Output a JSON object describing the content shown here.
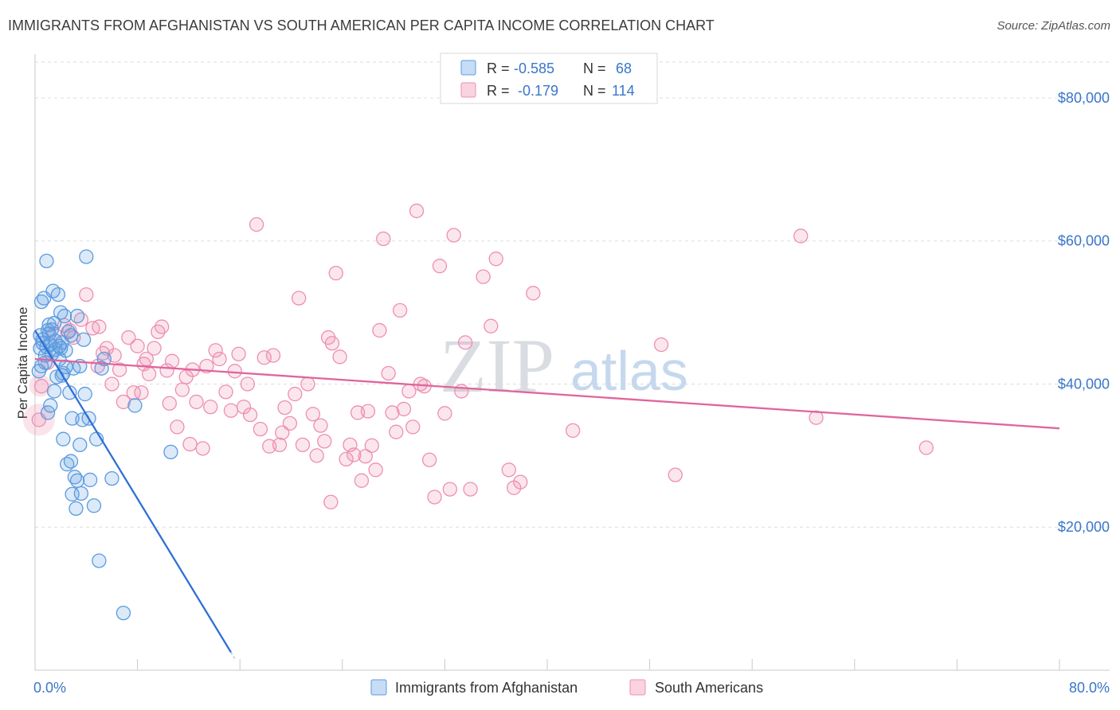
{
  "title": "IMMIGRANTS FROM AFGHANISTAN VS SOUTH AMERICAN PER CAPITA INCOME CORRELATION CHART",
  "source": "Source: ZipAtlas.com",
  "watermark": {
    "zip": "ZIP",
    "atlas": "atlas"
  },
  "colors": {
    "blue": "#5b9be0",
    "blue_line": "#2f6fd6",
    "pink": "#ee8fb0",
    "pink_line": "#e0659a",
    "tick_text": "#3a76c9"
  },
  "chart_data": {
    "type": "scatter",
    "ylabel": "Per Capita Income",
    "xlim": [
      0,
      80
    ],
    "ylim": [
      0,
      85000
    ],
    "x_tick_labels": {
      "left": "0.0%",
      "right": "80.0%"
    },
    "y_ticks": [
      20000,
      40000,
      60000,
      80000
    ],
    "y_tick_labels": [
      "$20,000",
      "$40,000",
      "$60,000",
      "$80,000"
    ],
    "grid": true,
    "legend": {
      "position": "top-center",
      "rows": [
        {
          "r_label": "R =",
          "r_value": "-0.585",
          "n_label": "N =",
          "n_value": "68"
        },
        {
          "r_label": "R =",
          "r_value": "-0.179",
          "n_label": "N =",
          "n_value": "114"
        }
      ]
    },
    "bottom_legend": [
      "Immigrants from Afghanistan",
      "South Americans"
    ],
    "series": [
      {
        "name": "Immigrants from Afghanistan",
        "color": "#5b9be0",
        "trend": {
          "x": [
            0.0,
            15.3
          ],
          "y": [
            47500,
            2500
          ]
        },
        "points": [
          [
            0.4,
            45000
          ],
          [
            0.6,
            46200
          ],
          [
            0.8,
            44000
          ],
          [
            1.0,
            47500
          ],
          [
            0.5,
            42500
          ],
          [
            1.2,
            45500
          ],
          [
            1.5,
            48500
          ],
          [
            0.7,
            52000
          ],
          [
            1.4,
            53000
          ],
          [
            1.8,
            52500
          ],
          [
            2.0,
            50000
          ],
          [
            2.3,
            49500
          ],
          [
            1.1,
            47000
          ],
          [
            0.9,
            45200
          ],
          [
            1.6,
            46000
          ],
          [
            2.1,
            45800
          ],
          [
            2.6,
            47300
          ],
          [
            1.3,
            44200
          ],
          [
            1.9,
            43500
          ],
          [
            2.8,
            46800
          ],
          [
            3.3,
            49500
          ],
          [
            2.4,
            42400
          ],
          [
            3.0,
            42200
          ],
          [
            2.2,
            41500
          ],
          [
            1.7,
            41000
          ],
          [
            0.3,
            41800
          ],
          [
            1.5,
            39000
          ],
          [
            2.7,
            38800
          ],
          [
            3.9,
            38600
          ],
          [
            1.2,
            37000
          ],
          [
            1.0,
            36000
          ],
          [
            2.9,
            35200
          ],
          [
            3.7,
            35000
          ],
          [
            4.2,
            35200
          ],
          [
            4.8,
            32300
          ],
          [
            2.2,
            32300
          ],
          [
            3.5,
            31500
          ],
          [
            2.8,
            29200
          ],
          [
            2.5,
            28800
          ],
          [
            3.1,
            27000
          ],
          [
            3.3,
            26500
          ],
          [
            4.3,
            26600
          ],
          [
            6.0,
            26800
          ],
          [
            2.9,
            24600
          ],
          [
            3.6,
            24700
          ],
          [
            3.2,
            22600
          ],
          [
            4.6,
            23000
          ],
          [
            5.0,
            15300
          ],
          [
            6.9,
            8000
          ],
          [
            0.9,
            57200
          ],
          [
            4.0,
            57800
          ],
          [
            0.4,
            46800
          ],
          [
            1.3,
            47600
          ],
          [
            2.4,
            44700
          ],
          [
            0.6,
            45700
          ],
          [
            5.2,
            42200
          ],
          [
            7.8,
            37000
          ],
          [
            10.6,
            30500
          ],
          [
            3.5,
            42500
          ],
          [
            0.8,
            43000
          ],
          [
            1.6,
            44800
          ],
          [
            2.1,
            41200
          ],
          [
            5.4,
            43500
          ],
          [
            1.9,
            45300
          ],
          [
            3.8,
            46200
          ],
          [
            1.1,
            48300
          ],
          [
            0.5,
            51500
          ],
          [
            2.0,
            45000
          ]
        ]
      },
      {
        "name": "South Americans",
        "color": "#ee8fb0",
        "trend": {
          "x": [
            0.0,
            80.0
          ],
          "y": [
            43500,
            33800
          ]
        },
        "points": [
          [
            0.3,
            35000
          ],
          [
            0.5,
            39700
          ],
          [
            1.0,
            43000
          ],
          [
            1.5,
            47000
          ],
          [
            2.3,
            48200
          ],
          [
            2.7,
            47500
          ],
          [
            3.0,
            46500
          ],
          [
            3.6,
            49000
          ],
          [
            4.0,
            52500
          ],
          [
            4.5,
            47800
          ],
          [
            5.0,
            48000
          ],
          [
            5.3,
            44300
          ],
          [
            5.6,
            45000
          ],
          [
            6.2,
            44000
          ],
          [
            6.0,
            40000
          ],
          [
            6.6,
            42000
          ],
          [
            6.9,
            37500
          ],
          [
            7.3,
            46500
          ],
          [
            7.7,
            38800
          ],
          [
            8.0,
            45300
          ],
          [
            8.3,
            38800
          ],
          [
            8.7,
            43500
          ],
          [
            8.9,
            41400
          ],
          [
            9.3,
            45000
          ],
          [
            9.6,
            47300
          ],
          [
            9.9,
            48000
          ],
          [
            10.3,
            41900
          ],
          [
            10.5,
            37300
          ],
          [
            10.7,
            43200
          ],
          [
            11.1,
            34000
          ],
          [
            11.5,
            39200
          ],
          [
            11.8,
            41000
          ],
          [
            12.1,
            31600
          ],
          [
            12.3,
            42000
          ],
          [
            12.6,
            37500
          ],
          [
            13.1,
            31000
          ],
          [
            13.4,
            42500
          ],
          [
            13.7,
            36800
          ],
          [
            14.1,
            44700
          ],
          [
            14.4,
            43500
          ],
          [
            14.9,
            38900
          ],
          [
            15.3,
            36300
          ],
          [
            15.6,
            41800
          ],
          [
            15.9,
            44200
          ],
          [
            16.3,
            36800
          ],
          [
            16.6,
            40000
          ],
          [
            16.8,
            35700
          ],
          [
            17.3,
            62300
          ],
          [
            17.9,
            43700
          ],
          [
            17.6,
            33700
          ],
          [
            18.3,
            31300
          ],
          [
            18.6,
            44000
          ],
          [
            19.3,
            33200
          ],
          [
            19.1,
            31500
          ],
          [
            19.5,
            36700
          ],
          [
            19.9,
            34500
          ],
          [
            20.3,
            38600
          ],
          [
            20.6,
            52000
          ],
          [
            20.9,
            31500
          ],
          [
            21.3,
            40000
          ],
          [
            21.7,
            35800
          ],
          [
            22.0,
            30000
          ],
          [
            22.3,
            34200
          ],
          [
            22.6,
            32000
          ],
          [
            22.9,
            46500
          ],
          [
            23.2,
            45700
          ],
          [
            23.5,
            55500
          ],
          [
            23.8,
            43800
          ],
          [
            23.1,
            23500
          ],
          [
            24.3,
            29500
          ],
          [
            24.6,
            31500
          ],
          [
            24.9,
            30100
          ],
          [
            25.2,
            36000
          ],
          [
            25.5,
            26500
          ],
          [
            25.8,
            29900
          ],
          [
            26.0,
            36200
          ],
          [
            26.3,
            31400
          ],
          [
            26.6,
            28000
          ],
          [
            26.9,
            47500
          ],
          [
            27.2,
            60300
          ],
          [
            27.6,
            41500
          ],
          [
            27.9,
            36000
          ],
          [
            28.2,
            33300
          ],
          [
            28.5,
            50300
          ],
          [
            28.8,
            36500
          ],
          [
            29.2,
            39000
          ],
          [
            29.5,
            34000
          ],
          [
            29.8,
            64200
          ],
          [
            30.1,
            40000
          ],
          [
            30.4,
            39700
          ],
          [
            30.8,
            29400
          ],
          [
            31.2,
            24200
          ],
          [
            31.6,
            56500
          ],
          [
            32.0,
            35900
          ],
          [
            32.4,
            25300
          ],
          [
            32.7,
            60800
          ],
          [
            33.3,
            39000
          ],
          [
            33.6,
            45800
          ],
          [
            34.0,
            25300
          ],
          [
            35.0,
            55000
          ],
          [
            35.6,
            48100
          ],
          [
            36.0,
            57500
          ],
          [
            37.0,
            28000
          ],
          [
            37.4,
            25500
          ],
          [
            37.9,
            26300
          ],
          [
            38.9,
            52700
          ],
          [
            42.0,
            33500
          ],
          [
            48.9,
            45500
          ],
          [
            50.0,
            27300
          ],
          [
            59.8,
            60700
          ],
          [
            61.0,
            35300
          ],
          [
            69.6,
            31100
          ],
          [
            8.5,
            42800
          ],
          [
            4.9,
            42500
          ]
        ]
      }
    ]
  }
}
